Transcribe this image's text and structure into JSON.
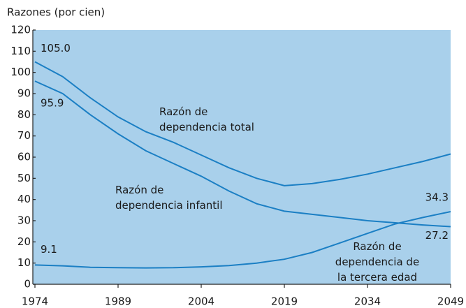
{
  "chart_data": {
    "type": "line",
    "y_label": "Razones (por cien)",
    "x": [
      1974,
      1979,
      1984,
      1989,
      1994,
      1999,
      2004,
      2009,
      2014,
      2019,
      2024,
      2029,
      2034,
      2039,
      2044,
      2049
    ],
    "xlim": [
      1974,
      2049
    ],
    "xticks": [
      1974,
      1989,
      2004,
      2019,
      2034,
      2049
    ],
    "ylim": [
      0,
      120
    ],
    "yticks": [
      0,
      10,
      20,
      30,
      40,
      50,
      60,
      70,
      80,
      90,
      100,
      110,
      120
    ],
    "grid": false,
    "background": "#a9d0eb",
    "series": [
      {
        "name": "Razón de\ndependencia total",
        "color": "#1b7fc4",
        "values": [
          105.0,
          98,
          88,
          79,
          72,
          67,
          61,
          55,
          50,
          46.5,
          47.5,
          49.5,
          52,
          55,
          58,
          61.5
        ],
        "value_labels": [
          "105.0",
          null,
          null,
          null,
          null,
          null,
          null,
          null,
          null,
          null,
          null,
          null,
          null,
          null,
          null,
          null
        ]
      },
      {
        "name": "Razón de\ndependencia infantil",
        "color": "#1b7fc4",
        "values": [
          95.9,
          90,
          80,
          71,
          63,
          57,
          51,
          44,
          38,
          34.5,
          33,
          31.5,
          30,
          29,
          28,
          27.2
        ],
        "value_labels": [
          "95.9",
          null,
          null,
          null,
          null,
          null,
          null,
          null,
          null,
          null,
          null,
          null,
          null,
          null,
          null,
          "27.2"
        ]
      },
      {
        "name": "Razón de\ndependencia de\nla tercera edad",
        "color": "#1b7fc4",
        "values": [
          9.1,
          8.7,
          8,
          7.8,
          7.7,
          7.8,
          8.2,
          8.8,
          10,
          11.8,
          15,
          19.5,
          24,
          28.5,
          31.5,
          34.3
        ],
        "value_labels": [
          "9.1",
          null,
          null,
          null,
          null,
          null,
          null,
          null,
          null,
          null,
          null,
          null,
          null,
          null,
          null,
          "34.3"
        ]
      }
    ]
  }
}
